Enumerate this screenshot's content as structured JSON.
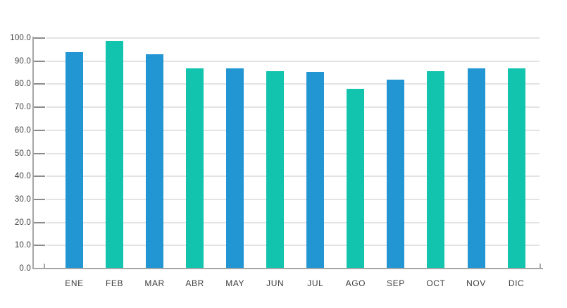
{
  "chart_data": {
    "type": "bar",
    "title": "",
    "xlabel": "",
    "ylabel": "",
    "categories": [
      "ENE",
      "FEB",
      "MAR",
      "ABR",
      "MAY",
      "JUN",
      "JUL",
      "AGO",
      "SEP",
      "OCT",
      "NOV",
      "DIC"
    ],
    "values": [
      94.0,
      98.8,
      92.9,
      87.0,
      87.0,
      85.5,
      85.2,
      77.9,
      82.0,
      85.5,
      87.0,
      87.0
    ],
    "ylim": [
      0,
      100
    ],
    "y_tick_step": 10,
    "y_tick_labels": [
      "0.0",
      "10.0",
      "20.0",
      "30.0",
      "40.0",
      "50.0",
      "60.0",
      "70.0",
      "80.0",
      "90.0",
      "100.0"
    ],
    "grid": true,
    "legend": false,
    "bar_palette": [
      "#2196D3",
      "#12C4AE"
    ],
    "colors": {
      "axis": "#A6A6A6",
      "tick": "#8C8C8C",
      "gridline": "#E3E3E3",
      "label": "#3D3D3D",
      "background": "#FFFFFF"
    }
  }
}
